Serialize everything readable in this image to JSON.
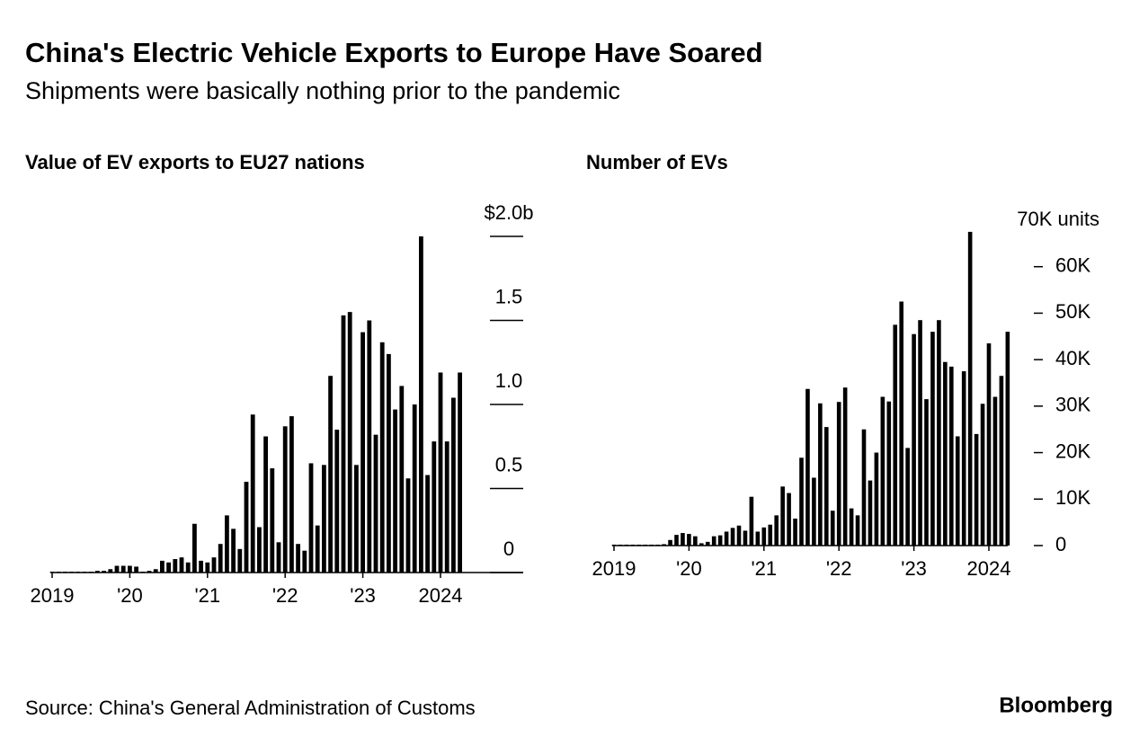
{
  "title": "China's Electric Vehicle Exports to Europe Have Soared",
  "subtitle": "Shipments were basically nothing prior to the pandemic",
  "source": "Source: China's General Administration of Customs",
  "brand": "Bloomberg",
  "chart_data": [
    {
      "type": "bar",
      "title": "Value of EV exports to EU27 nations",
      "color": "#000000",
      "categories": [
        "2019",
        null,
        null,
        null,
        null,
        null,
        null,
        null,
        null,
        null,
        null,
        null,
        "'20",
        null,
        null,
        null,
        null,
        null,
        null,
        null,
        null,
        null,
        null,
        null,
        "'21",
        null,
        null,
        null,
        null,
        null,
        null,
        null,
        null,
        null,
        null,
        null,
        "'22",
        null,
        null,
        null,
        null,
        null,
        null,
        null,
        null,
        null,
        null,
        null,
        "'23",
        null,
        null,
        null,
        null,
        null,
        null,
        null,
        null,
        null,
        null,
        null,
        "2024",
        null,
        null,
        null
      ],
      "values": [
        0.005,
        0.005,
        0.005,
        0.005,
        0.005,
        0.005,
        0.005,
        0.01,
        0.01,
        0.02,
        0.04,
        0.04,
        0.04,
        0.035,
        0.005,
        0.01,
        0.02,
        0.07,
        0.06,
        0.08,
        0.09,
        0.06,
        0.29,
        0.07,
        0.06,
        0.09,
        0.17,
        0.34,
        0.26,
        0.14,
        0.54,
        0.94,
        0.27,
        0.81,
        0.62,
        0.18,
        0.87,
        0.93,
        0.17,
        0.13,
        0.65,
        0.28,
        0.64,
        1.17,
        0.85,
        1.53,
        1.55,
        0.64,
        1.43,
        1.5,
        0.82,
        1.37,
        1.3,
        0.97,
        1.11,
        0.56,
        1.0,
        2.0,
        0.58,
        0.78,
        1.19,
        0.78,
        1.04,
        1.19
      ],
      "ylim": [
        0,
        2.0
      ],
      "yticks": [
        0,
        0.5,
        {
          "value": 1.0,
          "label": "1.0"
        },
        1.5,
        {
          "value": 2.0,
          "label": "$2.0b"
        }
      ]
    },
    {
      "type": "bar",
      "title": "Number of EVs",
      "color": "#000000",
      "categories": [
        "2019",
        null,
        null,
        null,
        null,
        null,
        null,
        null,
        null,
        null,
        null,
        null,
        "'20",
        null,
        null,
        null,
        null,
        null,
        null,
        null,
        null,
        null,
        null,
        null,
        "'21",
        null,
        null,
        null,
        null,
        null,
        null,
        null,
        null,
        null,
        null,
        null,
        "'22",
        null,
        null,
        null,
        null,
        null,
        null,
        null,
        null,
        null,
        null,
        null,
        "'23",
        null,
        null,
        null,
        null,
        null,
        null,
        null,
        null,
        null,
        null,
        null,
        "2024",
        null,
        null,
        null
      ],
      "values": [
        200,
        200,
        200,
        200,
        200,
        200,
        200,
        200,
        300,
        1200,
        2300,
        2700,
        2500,
        2000,
        500,
        800,
        2000,
        2200,
        3000,
        3800,
        4300,
        3200,
        10500,
        3000,
        3900,
        4500,
        6500,
        12700,
        11300,
        5800,
        18900,
        33700,
        14600,
        30600,
        25500,
        7500,
        30900,
        34000,
        8000,
        6500,
        25000,
        14000,
        20000,
        32000,
        31000,
        47500,
        52500,
        21000,
        45500,
        48500,
        31500,
        46000,
        48500,
        39500,
        38500,
        23500,
        37500,
        67500,
        24000,
        30500,
        43500,
        32000,
        36500,
        46000
      ],
      "ylim": [
        0,
        70000
      ],
      "yticks": [
        0,
        {
          "value": 10000,
          "label": "10K"
        },
        {
          "value": 20000,
          "label": "20K"
        },
        {
          "value": 30000,
          "label": "30K"
        },
        {
          "value": 40000,
          "label": "40K"
        },
        {
          "value": 50000,
          "label": "50K"
        },
        {
          "value": 60000,
          "label": "60K"
        },
        {
          "value": 70000,
          "label": "70K units"
        }
      ]
    }
  ]
}
